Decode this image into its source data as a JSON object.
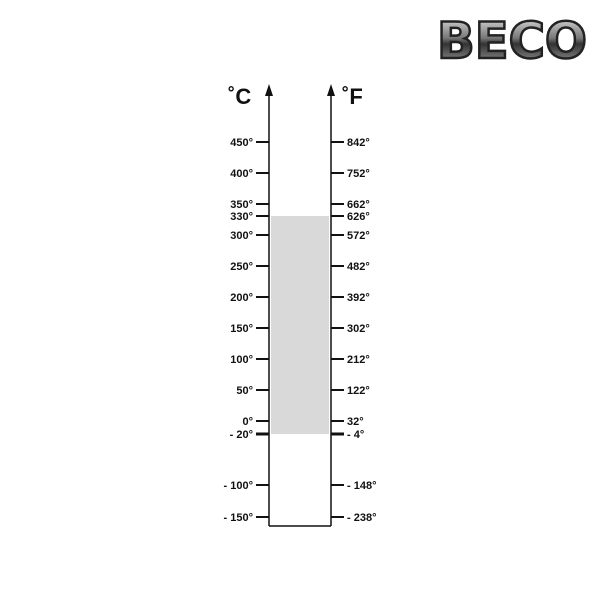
{
  "logo": {
    "text": "BECO"
  },
  "units": {
    "celsius": "˚C",
    "fahrenheit": "˚F"
  },
  "range": {
    "min_c": -20,
    "max_c": 330,
    "min_f": -4,
    "max_f": 626,
    "fill_color": "#d9d9d9"
  },
  "scale": [
    {
      "c": 450,
      "c_label": "450°",
      "f_label": "842°"
    },
    {
      "c": 400,
      "c_label": "400°",
      "f_label": "752°"
    },
    {
      "c": 350,
      "c_label": "350°",
      "f_label": "662°"
    },
    {
      "c": 330,
      "c_label": "330°",
      "f_label": "626°"
    },
    {
      "c": 300,
      "c_label": "300°",
      "f_label": "572°"
    },
    {
      "c": 250,
      "c_label": "250°",
      "f_label": "482°"
    },
    {
      "c": 200,
      "c_label": "200°",
      "f_label": "392°"
    },
    {
      "c": 150,
      "c_label": "150°",
      "f_label": "302°"
    },
    {
      "c": 100,
      "c_label": "100°",
      "f_label": "212°"
    },
    {
      "c": 50,
      "c_label": "50°",
      "f_label": "122°"
    },
    {
      "c": 0,
      "c_label": "0°",
      "f_label": "32°"
    },
    {
      "c": -20,
      "c_label": "- 20°",
      "f_label": "- 4°"
    },
    {
      "c": -100,
      "c_label": "- 100°",
      "f_label": "- 148°"
    },
    {
      "c": -150,
      "c_label": "- 150°",
      "f_label": "- 238°"
    }
  ]
}
